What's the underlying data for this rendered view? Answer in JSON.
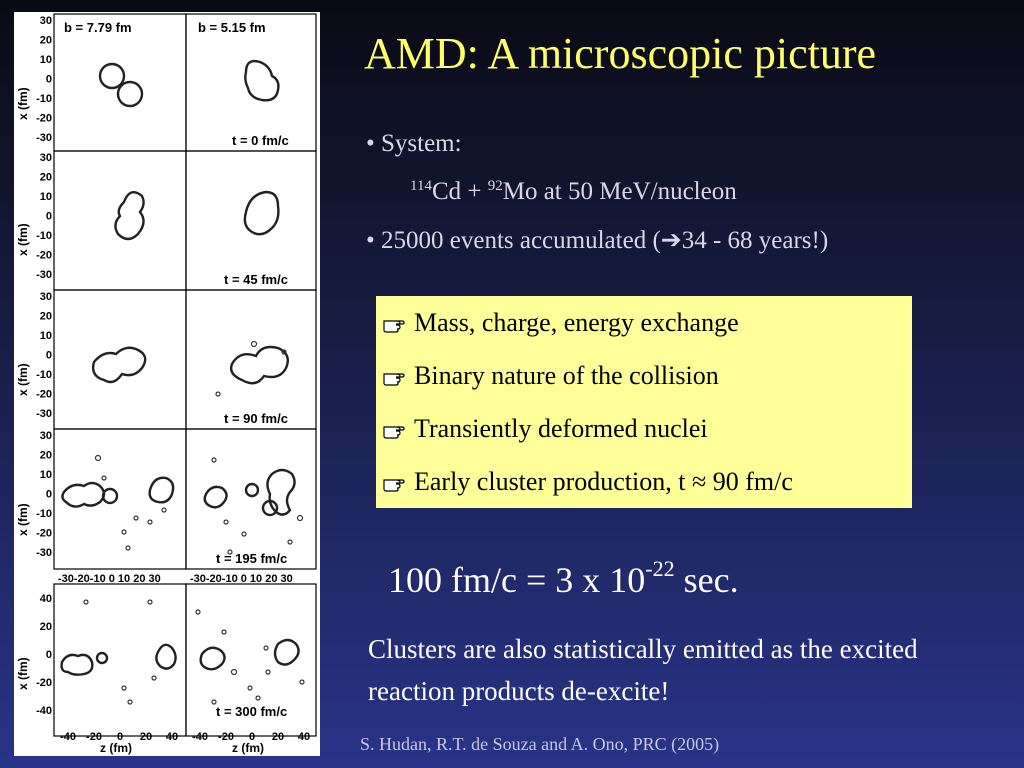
{
  "title": "AMD: A microscopic picture",
  "bullets": {
    "system_label": "• System:",
    "reaction": {
      "a_mass": "114",
      "a_elem": "Cd + ",
      "b_mass": "92",
      "b_elem": "Mo at 50 MeV/nucleon"
    },
    "events": {
      "prefix": "• 25000 events accumulated (",
      "arrow": "➔",
      "suffix": "34 - 68 years!)"
    }
  },
  "box": {
    "items": [
      "Mass, charge, energy exchange",
      "Binary nature of the collision",
      "Transiently deformed nuclei",
      "Early cluster production, t ≈ 90 fm/c"
    ],
    "bullet_icon": "pointing-hand-icon",
    "background": "#ffff99"
  },
  "equation": {
    "prefix": "100 fm/c = 3 x 10",
    "exponent": "-22",
    "suffix": " sec."
  },
  "note": "Clusters are also statistically emitted as the excited reaction products de-excite!",
  "citation": "S. Hudan, R.T. de Souza and A. Ono, PRC (2005)",
  "figure": {
    "column_labels": [
      "b = 7.79 fm",
      "b = 5.15 fm"
    ],
    "time_labels": [
      "t = 0 fm/c",
      "t = 45 fm/c",
      "t = 90 fm/c",
      "t = 195 fm/c",
      "t = 300 fm/c"
    ],
    "y_label": "x (fm)",
    "x_label": "z (fm)",
    "y_ticks_small": [
      "30",
      "20",
      "10",
      "0",
      "-10",
      "-20",
      "-30"
    ],
    "y_ticks_large": [
      "40",
      "20",
      "0",
      "-20",
      "-40"
    ],
    "x_ticks_small": "-30-20-10 0 10 20 30",
    "x_ticks_large": [
      "-40",
      "-20",
      "0",
      "20",
      "40"
    ]
  }
}
